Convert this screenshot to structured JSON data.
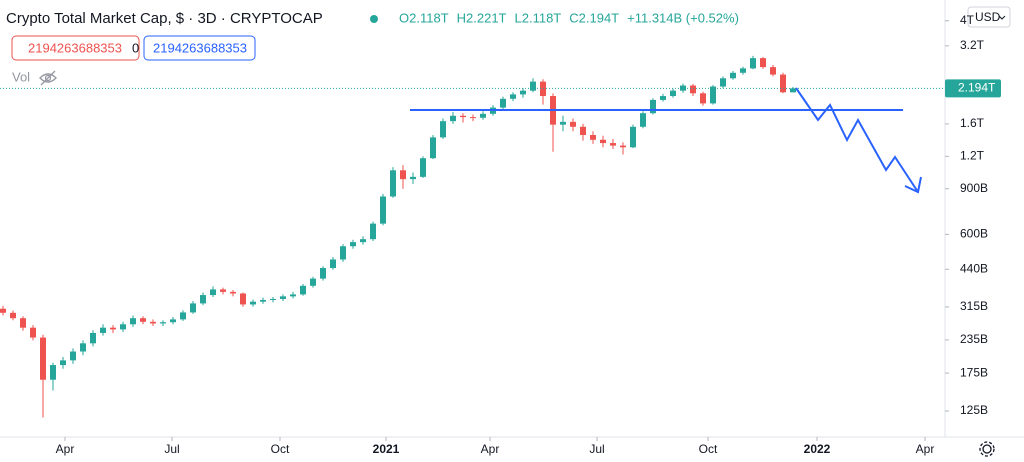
{
  "header": {
    "title": "Crypto Total Market Cap, $ · 3D · CRYPTOCAP",
    "legend": [
      "O2.118T",
      "H2.221T",
      "L2.118T",
      "C2.194T",
      "+11.314B (+0.52%)"
    ],
    "box_left": "2194263688353",
    "box_mid": "0",
    "box_right": "2194263688353",
    "vol": "Vol",
    "currency": "USD"
  },
  "chart_data": {
    "type": "candlestick",
    "ylog": true,
    "up_color": "#26a69a",
    "down_color": "#ef5350",
    "ylim": [
      101,
      4810
    ],
    "yticks": [
      {
        "value": 125,
        "label": "125B"
      },
      {
        "value": 175,
        "label": "175B"
      },
      {
        "value": 235,
        "label": "235B"
      },
      {
        "value": 315,
        "label": "315B"
      },
      {
        "value": 440,
        "label": "440B"
      },
      {
        "value": 600,
        "label": "600B"
      },
      {
        "value": 900,
        "label": "900B"
      },
      {
        "value": 1200,
        "label": "1.2T"
      },
      {
        "value": 1600,
        "label": "1.6T"
      },
      {
        "value": 3200,
        "label": "3.2T"
      },
      {
        "value": 4000,
        "label": "4T"
      }
    ],
    "xlim": [
      -0.3,
      94.2
    ],
    "xticks": [
      {
        "value": 6.2,
        "label": "Apr"
      },
      {
        "value": 16.9,
        "label": "Jul"
      },
      {
        "value": 27.7,
        "label": "Oct"
      },
      {
        "value": 38.3,
        "label": "2021"
      },
      {
        "value": 48.7,
        "label": "Apr"
      },
      {
        "value": 59.4,
        "label": "Jul"
      },
      {
        "value": 70.5,
        "label": "Oct"
      },
      {
        "value": 81.4,
        "label": "2022"
      },
      {
        "value": 92.2,
        "label": "Apr"
      }
    ],
    "last_price": {
      "value": 2194,
      "label": "2.194T"
    },
    "open": [
      310,
      299,
      285,
      262,
      240,
      165,
      188,
      196,
      212,
      228,
      250,
      262,
      258,
      270,
      285,
      276,
      272,
      275,
      282,
      300,
      325,
      350,
      368,
      360,
      355,
      322,
      330,
      335,
      338,
      346,
      352,
      380,
      405,
      445,
      480,
      540,
      560,
      575,
      660,
      840,
      1060,
      980,
      1000,
      1180,
      1420,
      1640,
      1720,
      1700,
      1690,
      1750,
      1850,
      2000,
      2080,
      2150,
      2330,
      2050,
      1590,
      1630,
      1560,
      1450,
      1390,
      1350,
      1320,
      1300,
      1560,
      1760,
      1980,
      2050,
      2150,
      2250,
      2100,
      1920,
      2230,
      2400,
      2520,
      2620,
      2870,
      2650,
      2480,
      2118
    ],
    "high": [
      318,
      305,
      290,
      268,
      246,
      192,
      202,
      218,
      234,
      256,
      270,
      268,
      276,
      292,
      290,
      282,
      280,
      288,
      306,
      332,
      358,
      378,
      374,
      366,
      358,
      336,
      342,
      344,
      352,
      360,
      386,
      412,
      452,
      490,
      550,
      572,
      590,
      672,
      860,
      1090,
      1110,
      1040,
      1200,
      1450,
      1680,
      1780,
      1760,
      1740,
      1790,
      1890,
      2040,
      2120,
      2200,
      2400,
      2380,
      2100,
      1720,
      1680,
      1600,
      1500,
      1440,
      1400,
      1360,
      1590,
      1790,
      2010,
      2090,
      2190,
      2290,
      2280,
      2130,
      2260,
      2440,
      2560,
      2660,
      2930,
      2900,
      2700,
      2520,
      2221
    ],
    "low": [
      292,
      280,
      255,
      234,
      118,
      150,
      182,
      190,
      205,
      222,
      244,
      250,
      252,
      264,
      270,
      266,
      266,
      270,
      278,
      296,
      320,
      344,
      352,
      346,
      315,
      316,
      324,
      328,
      332,
      340,
      348,
      374,
      398,
      438,
      470,
      528,
      548,
      566,
      650,
      830,
      900,
      940,
      990,
      1170,
      1400,
      1600,
      1620,
      1640,
      1660,
      1720,
      1820,
      1960,
      2020,
      2120,
      1900,
      1250,
      1500,
      1500,
      1380,
      1340,
      1300,
      1280,
      1220,
      1290,
      1540,
      1740,
      1950,
      2020,
      2110,
      2050,
      1880,
      1900,
      2200,
      2370,
      2480,
      2600,
      2610,
      2440,
      2100,
      2118
    ],
    "close": [
      299,
      285,
      262,
      240,
      165,
      188,
      196,
      212,
      228,
      250,
      262,
      258,
      270,
      285,
      276,
      272,
      275,
      282,
      300,
      325,
      350,
      368,
      360,
      355,
      322,
      330,
      335,
      338,
      346,
      352,
      380,
      405,
      445,
      480,
      540,
      560,
      575,
      660,
      840,
      1060,
      980,
      1000,
      1180,
      1420,
      1640,
      1720,
      1700,
      1690,
      1750,
      1850,
      2000,
      2080,
      2150,
      2330,
      2050,
      1590,
      1630,
      1560,
      1450,
      1390,
      1350,
      1320,
      1300,
      1560,
      1760,
      1980,
      2050,
      2150,
      2250,
      2100,
      1920,
      2230,
      2400,
      2520,
      2620,
      2870,
      2650,
      2480,
      2120,
      2194
    ]
  }
}
